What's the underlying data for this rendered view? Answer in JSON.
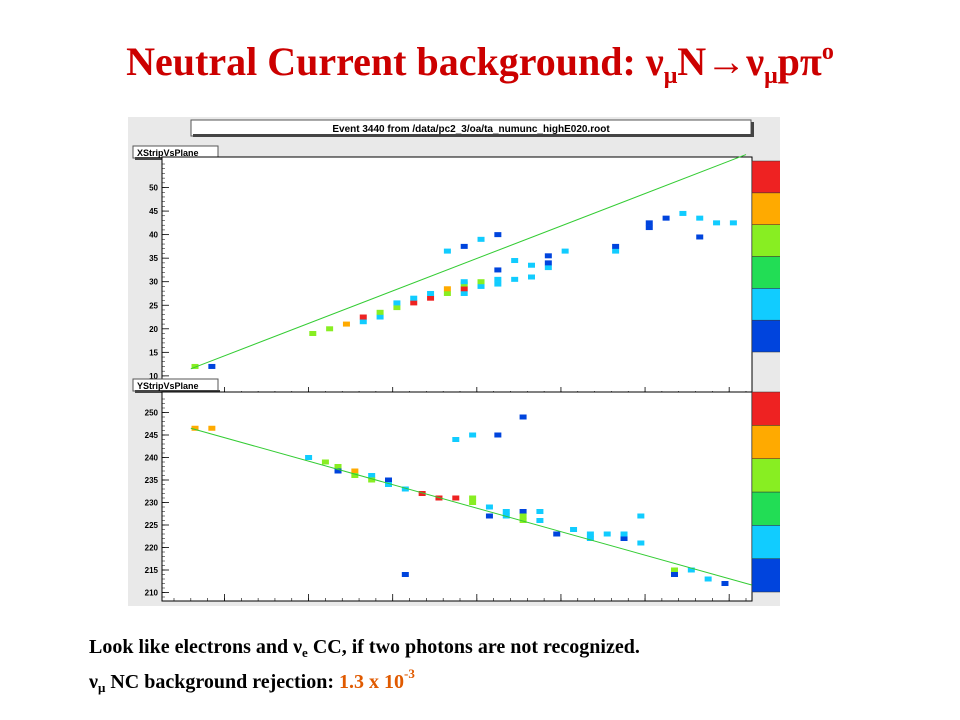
{
  "title": {
    "lead": "Neutral Current background: ",
    "nu": "ν",
    "mu": "μ",
    "n": "N",
    "arrow": "→",
    "nu2": "ν",
    "mu2": "μ",
    "p": "p",
    "pi": "π",
    "o": "o"
  },
  "event_header": "Event 3440 from /data/pc2_3/oa/ta_numunc_highE020.root",
  "caption": {
    "line1_a": "Look like electrons and ",
    "line1_nu": "ν",
    "line1_e": "e",
    "line1_b": " CC, if two photons are not recognized.",
    "line2_nu": "ν",
    "line2_mu": "μ",
    "line2_a": " NC background  rejection: ",
    "line2_val": "1.3 x 10",
    "line2_exp": "-3"
  },
  "palette": [
    "#0044dd",
    "#11ccff",
    "#22dd55",
    "#88ee22",
    "#ffaa00",
    "#ee2222"
  ],
  "chart_data": [
    {
      "type": "scatter",
      "title": "XStripVsPlane",
      "xlim": [
        704,
        772
      ],
      "ylim": [
        7,
        55
      ],
      "x_ticks": [
        710,
        720,
        730,
        740,
        750,
        760,
        770
      ],
      "y_ticks": [
        10,
        15,
        20,
        25,
        30,
        35,
        40,
        45,
        50
      ],
      "color_scale_ticks": [
        0,
        1,
        2,
        3,
        4,
        5,
        6
      ],
      "fit_line": {
        "x": [
          706,
          772
        ],
        "y": [
          11.5,
          57
        ]
      },
      "points": [
        {
          "x": 706.5,
          "y": 12,
          "v": 3
        },
        {
          "x": 708.5,
          "y": 12,
          "v": 0
        },
        {
          "x": 720.5,
          "y": 19,
          "v": 3
        },
        {
          "x": 722.5,
          "y": 20,
          "v": 3
        },
        {
          "x": 724.5,
          "y": 21,
          "v": 4
        },
        {
          "x": 726.5,
          "y": 21.5,
          "v": 1
        },
        {
          "x": 726.5,
          "y": 22.5,
          "v": 5
        },
        {
          "x": 728.5,
          "y": 22.5,
          "v": 1
        },
        {
          "x": 728.5,
          "y": 23.5,
          "v": 3
        },
        {
          "x": 730.5,
          "y": 24.5,
          "v": 3
        },
        {
          "x": 730.5,
          "y": 25.5,
          "v": 1
        },
        {
          "x": 732.5,
          "y": 25.5,
          "v": 5
        },
        {
          "x": 732.5,
          "y": 26.5,
          "v": 1
        },
        {
          "x": 734.5,
          "y": 26.5,
          "v": 5
        },
        {
          "x": 734.5,
          "y": 27.5,
          "v": 1
        },
        {
          "x": 736.5,
          "y": 27.5,
          "v": 3
        },
        {
          "x": 736.5,
          "y": 28.5,
          "v": 4
        },
        {
          "x": 736.5,
          "y": 36.5,
          "v": 1
        },
        {
          "x": 738.5,
          "y": 27.5,
          "v": 1
        },
        {
          "x": 738.5,
          "y": 28.5,
          "v": 5
        },
        {
          "x": 738.5,
          "y": 29.5,
          "v": 3
        },
        {
          "x": 738.5,
          "y": 30,
          "v": 1
        },
        {
          "x": 738.5,
          "y": 37.5,
          "v": 0
        },
        {
          "x": 740.5,
          "y": 29,
          "v": 1
        },
        {
          "x": 740.5,
          "y": 30,
          "v": 3
        },
        {
          "x": 740.5,
          "y": 39,
          "v": 1
        },
        {
          "x": 742.5,
          "y": 29.5,
          "v": 1
        },
        {
          "x": 742.5,
          "y": 30.5,
          "v": 1
        },
        {
          "x": 742.5,
          "y": 32.5,
          "v": 0
        },
        {
          "x": 742.5,
          "y": 40,
          "v": 0
        },
        {
          "x": 744.5,
          "y": 30.5,
          "v": 1
        },
        {
          "x": 744.5,
          "y": 34.5,
          "v": 1
        },
        {
          "x": 746.5,
          "y": 31,
          "v": 1
        },
        {
          "x": 746.5,
          "y": 33.5,
          "v": 1
        },
        {
          "x": 748.5,
          "y": 33,
          "v": 1
        },
        {
          "x": 748.5,
          "y": 34,
          "v": 0
        },
        {
          "x": 748.5,
          "y": 35.5,
          "v": 0
        },
        {
          "x": 750.5,
          "y": 36.5,
          "v": 1
        },
        {
          "x": 756.5,
          "y": 36.5,
          "v": 1
        },
        {
          "x": 756.5,
          "y": 37.5,
          "v": 0
        },
        {
          "x": 760.5,
          "y": 41.5,
          "v": 0
        },
        {
          "x": 760.5,
          "y": 42.5,
          "v": 0
        },
        {
          "x": 762.5,
          "y": 43.5,
          "v": 0
        },
        {
          "x": 764.5,
          "y": 44.5,
          "v": 1
        },
        {
          "x": 766.5,
          "y": 39.5,
          "v": 0
        },
        {
          "x": 766.5,
          "y": 43.5,
          "v": 1
        },
        {
          "x": 768.5,
          "y": 42.5,
          "v": 1
        },
        {
          "x": 770.5,
          "y": 42.5,
          "v": 1
        }
      ]
    },
    {
      "type": "scatter",
      "title": "YStripVsPlane",
      "xlim": [
        704,
        772
      ],
      "ylim": [
        209,
        253
      ],
      "x_ticks": [
        710,
        720,
        730,
        740,
        750,
        760,
        770
      ],
      "y_ticks": [
        210,
        215,
        220,
        225,
        230,
        235,
        240,
        245,
        250
      ],
      "color_scale_ticks": [
        0,
        1,
        2,
        3,
        4,
        5,
        6
      ],
      "fit_line": {
        "x": [
          706,
          773
        ],
        "y": [
          246.5,
          211.5
        ]
      },
      "points": [
        {
          "x": 706.5,
          "y": 246.5,
          "v": 4
        },
        {
          "x": 708.5,
          "y": 246.5,
          "v": 4
        },
        {
          "x": 720,
          "y": 240,
          "v": 1
        },
        {
          "x": 722,
          "y": 239,
          "v": 3
        },
        {
          "x": 723.5,
          "y": 238,
          "v": 3
        },
        {
          "x": 723.5,
          "y": 237,
          "v": 0
        },
        {
          "x": 725.5,
          "y": 237,
          "v": 4
        },
        {
          "x": 725.5,
          "y": 236,
          "v": 3
        },
        {
          "x": 727.5,
          "y": 236,
          "v": 1
        },
        {
          "x": 727.5,
          "y": 235,
          "v": 3
        },
        {
          "x": 729.5,
          "y": 235,
          "v": 0
        },
        {
          "x": 729.5,
          "y": 234,
          "v": 1
        },
        {
          "x": 731.5,
          "y": 233,
          "v": 1
        },
        {
          "x": 731.5,
          "y": 214,
          "v": 0
        },
        {
          "x": 733.5,
          "y": 232,
          "v": 5
        },
        {
          "x": 735.5,
          "y": 231,
          "v": 5
        },
        {
          "x": 737.5,
          "y": 231,
          "v": 5
        },
        {
          "x": 737.5,
          "y": 244,
          "v": 1
        },
        {
          "x": 739.5,
          "y": 245,
          "v": 1
        },
        {
          "x": 739.5,
          "y": 230,
          "v": 3
        },
        {
          "x": 739.5,
          "y": 231,
          "v": 3
        },
        {
          "x": 741.5,
          "y": 229,
          "v": 1
        },
        {
          "x": 741.5,
          "y": 227,
          "v": 0
        },
        {
          "x": 742.5,
          "y": 245,
          "v": 0
        },
        {
          "x": 743.5,
          "y": 228,
          "v": 1
        },
        {
          "x": 743.5,
          "y": 227,
          "v": 1
        },
        {
          "x": 745.5,
          "y": 228,
          "v": 0
        },
        {
          "x": 745.5,
          "y": 227,
          "v": 3
        },
        {
          "x": 745.5,
          "y": 226,
          "v": 3
        },
        {
          "x": 745.5,
          "y": 249,
          "v": 0
        },
        {
          "x": 747.5,
          "y": 228,
          "v": 1
        },
        {
          "x": 747.5,
          "y": 226,
          "v": 1
        },
        {
          "x": 749.5,
          "y": 223,
          "v": 0
        },
        {
          "x": 751.5,
          "y": 224,
          "v": 1
        },
        {
          "x": 753.5,
          "y": 223,
          "v": 1
        },
        {
          "x": 753.5,
          "y": 222,
          "v": 1
        },
        {
          "x": 755.5,
          "y": 223,
          "v": 1
        },
        {
          "x": 757.5,
          "y": 222,
          "v": 0
        },
        {
          "x": 757.5,
          "y": 223,
          "v": 1
        },
        {
          "x": 759.5,
          "y": 221,
          "v": 1
        },
        {
          "x": 759.5,
          "y": 227,
          "v": 1
        },
        {
          "x": 763.5,
          "y": 215,
          "v": 3
        },
        {
          "x": 763.5,
          "y": 214,
          "v": 0
        },
        {
          "x": 765.5,
          "y": 215,
          "v": 1
        },
        {
          "x": 767.5,
          "y": 213,
          "v": 1
        },
        {
          "x": 769.5,
          "y": 212,
          "v": 0
        }
      ]
    }
  ]
}
